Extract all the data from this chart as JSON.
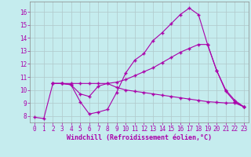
{
  "xlabel": "Windchill (Refroidissement éolien,°C)",
  "bg_color": "#c5ecee",
  "line_color": "#aa00aa",
  "grid_color": "#b0c8ca",
  "xlim": [
    -0.5,
    23.5
  ],
  "ylim": [
    7.5,
    16.8
  ],
  "xticks": [
    0,
    1,
    2,
    3,
    4,
    5,
    6,
    7,
    8,
    9,
    10,
    11,
    12,
    13,
    14,
    15,
    16,
    17,
    18,
    19,
    20,
    21,
    22,
    23
  ],
  "yticks": [
    8,
    9,
    10,
    11,
    12,
    13,
    14,
    15,
    16
  ],
  "line1_x": [
    0,
    1,
    2,
    3,
    4,
    5,
    6,
    7,
    8,
    9,
    10,
    11,
    12,
    13,
    14,
    15,
    16,
    17,
    18,
    19,
    20,
    21,
    22,
    23
  ],
  "line1_y": [
    7.9,
    7.8,
    10.5,
    10.5,
    10.4,
    9.1,
    8.15,
    8.3,
    8.5,
    9.8,
    11.3,
    12.3,
    12.8,
    13.8,
    14.4,
    15.1,
    15.8,
    16.3,
    15.8,
    13.5,
    11.5,
    9.9,
    9.1,
    8.7
  ],
  "line2_x": [
    2,
    3,
    4,
    5,
    6,
    7,
    8,
    9,
    10,
    11,
    12,
    13,
    14,
    15,
    16,
    17,
    18,
    19,
    20,
    21,
    22,
    23
  ],
  "line2_y": [
    10.5,
    10.5,
    10.5,
    10.5,
    10.5,
    10.5,
    10.5,
    10.6,
    10.8,
    11.1,
    11.4,
    11.7,
    12.1,
    12.5,
    12.9,
    13.2,
    13.5,
    13.5,
    11.5,
    10.0,
    9.2,
    8.7
  ],
  "line3_x": [
    2,
    3,
    4,
    5,
    6,
    7,
    8,
    9,
    10,
    11,
    12,
    13,
    14,
    15,
    16,
    17,
    18,
    19,
    20,
    21,
    22,
    23
  ],
  "line3_y": [
    10.5,
    10.5,
    10.4,
    9.7,
    9.5,
    10.3,
    10.5,
    10.2,
    10.0,
    9.9,
    9.8,
    9.7,
    9.6,
    9.5,
    9.4,
    9.3,
    9.2,
    9.1,
    9.05,
    9.0,
    9.0,
    8.7
  ],
  "font_family": "monospace",
  "label_fontsize": 6,
  "tick_fontsize": 5.5
}
